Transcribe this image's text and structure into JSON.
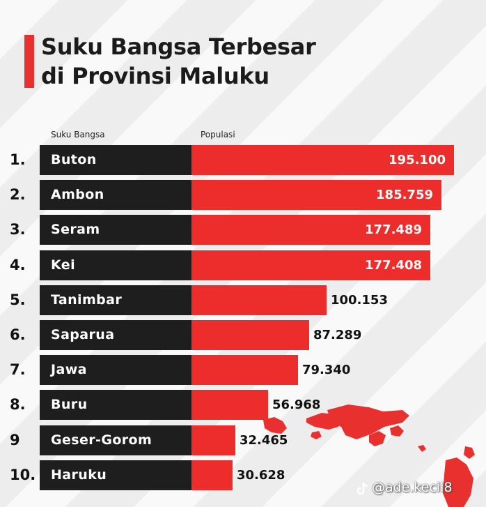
{
  "title_lines": [
    "Suku Bangsa Terbesar",
    "di Provinsi Maluku"
  ],
  "columns": {
    "name": "Suku Bangsa",
    "value": "Populasi"
  },
  "watermark": "@ade.kecil8",
  "colors": {
    "accent": "#ec2d2c",
    "name_box": "#1e1e1e",
    "background": "#f1f1f1"
  },
  "chart_data": {
    "type": "bar",
    "orientation": "horizontal",
    "categories": [
      "Buton",
      "Ambon",
      "Seram",
      "Kei",
      "Tanimbar",
      "Saparua",
      "Jawa",
      "Buru",
      "Geser-Gorom",
      "Haruku"
    ],
    "ranks": [
      "1.",
      "2.",
      "3.",
      "4.",
      "5.",
      "6.",
      "7.",
      "8.",
      "9",
      "10."
    ],
    "values": [
      195100,
      185759,
      177489,
      177408,
      100153,
      87289,
      79340,
      56968,
      32465,
      30628
    ],
    "value_labels": [
      "195.100",
      "185.759",
      "177.489",
      "177.408",
      "100.153",
      "87.289",
      "79.340",
      "56.968",
      "32.465",
      "30.628"
    ],
    "title": "Suku Bangsa Terbesar di Provinsi Maluku",
    "xlabel": "Populasi",
    "ylabel": "Suku Bangsa",
    "xlim": [
      0,
      195100
    ]
  }
}
